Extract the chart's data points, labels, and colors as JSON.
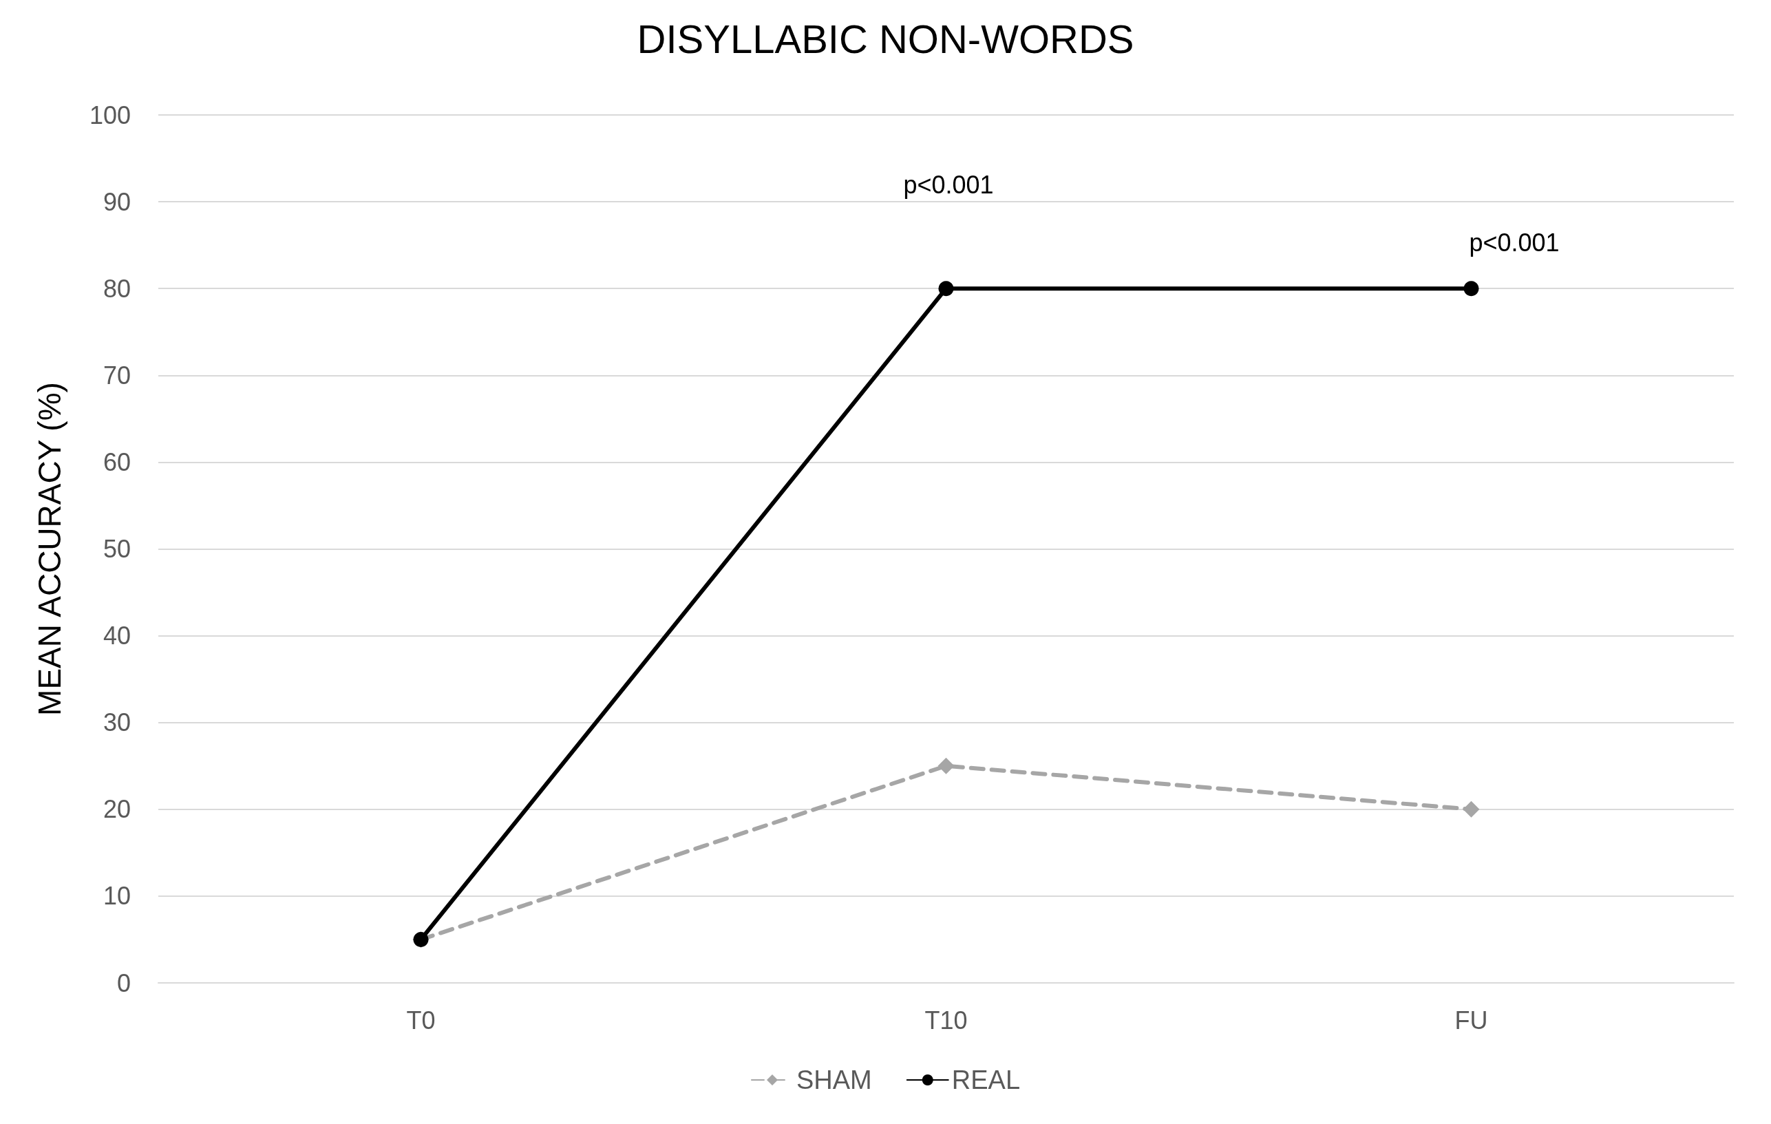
{
  "chart_data": {
    "type": "line",
    "title": "DISYLLABIC NON-WORDS",
    "ylabel": "MEAN ACCURACY (%)",
    "categories": [
      "T0",
      "T10",
      "FU"
    ],
    "series": [
      {
        "name": "SHAM",
        "color": "#a6a6a6",
        "values": [
          5,
          25,
          20
        ],
        "marker": "diamond",
        "line_style": "dashed"
      },
      {
        "name": "REAL",
        "color": "#000000",
        "values": [
          5,
          80,
          80
        ],
        "marker": "circle",
        "line_style": "solid"
      }
    ],
    "ylim": [
      0,
      100
    ],
    "yticks": [
      0,
      10,
      20,
      30,
      40,
      50,
      60,
      70,
      80,
      90,
      100
    ],
    "grid": "y",
    "legend": "bottom",
    "annotations": [
      "p<0.001",
      "p<0.001"
    ]
  }
}
